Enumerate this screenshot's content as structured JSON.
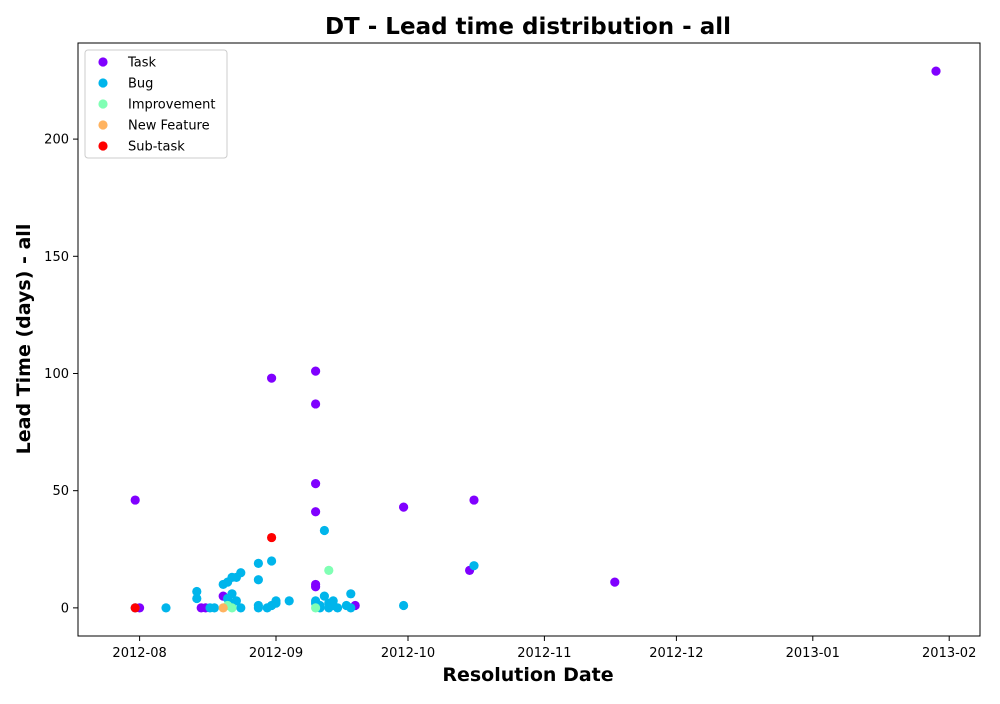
{
  "chart_data": {
    "type": "scatter",
    "title": "DT - Lead time distribution - all",
    "xlabel": "Resolution Date",
    "ylabel": "Lead Time (days) - all",
    "x_type": "date",
    "xlim": [
      "2012-07-18",
      "2013-02-08"
    ],
    "ylim": [
      -12,
      241
    ],
    "x_ticks": [
      "2012-08-01",
      "2012-09-01",
      "2012-10-01",
      "2012-11-01",
      "2012-12-01",
      "2013-01-01",
      "2013-02-01"
    ],
    "x_tick_labels": [
      "2012-08",
      "2012-09",
      "2012-10",
      "2012-11",
      "2012-12",
      "2013-01",
      "2013-02"
    ],
    "y_ticks": [
      0,
      50,
      100,
      150,
      200
    ],
    "y_tick_labels": [
      "0",
      "50",
      "100",
      "150",
      "200"
    ],
    "grid": false,
    "legend_position": "upper-left",
    "series": [
      {
        "name": "Task",
        "color": "#8000ff",
        "points": [
          {
            "x": "2012-07-31",
            "y": 46
          },
          {
            "x": "2012-08-01",
            "y": 0
          },
          {
            "x": "2012-08-15",
            "y": 0
          },
          {
            "x": "2012-08-16",
            "y": 0
          },
          {
            "x": "2012-08-20",
            "y": 5
          },
          {
            "x": "2012-08-31",
            "y": 98
          },
          {
            "x": "2012-09-10",
            "y": 101
          },
          {
            "x": "2012-09-10",
            "y": 87
          },
          {
            "x": "2012-09-10",
            "y": 53
          },
          {
            "x": "2012-09-10",
            "y": 41
          },
          {
            "x": "2012-09-10",
            "y": 10
          },
          {
            "x": "2012-09-10",
            "y": 9
          },
          {
            "x": "2012-09-19",
            "y": 1
          },
          {
            "x": "2012-09-30",
            "y": 43
          },
          {
            "x": "2012-10-15",
            "y": 16
          },
          {
            "x": "2012-10-16",
            "y": 46
          },
          {
            "x": "2012-11-17",
            "y": 11
          },
          {
            "x": "2013-01-29",
            "y": 229
          }
        ]
      },
      {
        "name": "Bug",
        "color": "#00b5eb",
        "points": [
          {
            "x": "2012-07-31",
            "y": 0
          },
          {
            "x": "2012-08-07",
            "y": 0
          },
          {
            "x": "2012-08-14",
            "y": 7
          },
          {
            "x": "2012-08-14",
            "y": 4
          },
          {
            "x": "2012-08-17",
            "y": 0
          },
          {
            "x": "2012-08-18",
            "y": 0
          },
          {
            "x": "2012-08-20",
            "y": 10
          },
          {
            "x": "2012-08-21",
            "y": 11
          },
          {
            "x": "2012-08-22",
            "y": 6
          },
          {
            "x": "2012-08-21",
            "y": 4
          },
          {
            "x": "2012-08-22",
            "y": 2
          },
          {
            "x": "2012-08-23",
            "y": 3
          },
          {
            "x": "2012-08-22",
            "y": 13
          },
          {
            "x": "2012-08-23",
            "y": 13
          },
          {
            "x": "2012-08-24",
            "y": 15
          },
          {
            "x": "2012-08-24",
            "y": 0
          },
          {
            "x": "2012-08-28",
            "y": 19
          },
          {
            "x": "2012-08-28",
            "y": 12
          },
          {
            "x": "2012-08-28",
            "y": 1
          },
          {
            "x": "2012-08-28",
            "y": 0
          },
          {
            "x": "2012-08-30",
            "y": 0
          },
          {
            "x": "2012-08-31",
            "y": 20
          },
          {
            "x": "2012-08-31",
            "y": 1
          },
          {
            "x": "2012-09-01",
            "y": 2
          },
          {
            "x": "2012-09-01",
            "y": 3
          },
          {
            "x": "2012-09-04",
            "y": 3
          },
          {
            "x": "2012-09-10",
            "y": 3
          },
          {
            "x": "2012-09-10",
            "y": 2
          },
          {
            "x": "2012-09-11",
            "y": 1
          },
          {
            "x": "2012-09-11",
            "y": 0
          },
          {
            "x": "2012-09-12",
            "y": 33
          },
          {
            "x": "2012-09-12",
            "y": 5
          },
          {
            "x": "2012-09-13",
            "y": 2
          },
          {
            "x": "2012-09-13",
            "y": 0
          },
          {
            "x": "2012-09-14",
            "y": 3
          },
          {
            "x": "2012-09-14",
            "y": 1
          },
          {
            "x": "2012-09-15",
            "y": 0
          },
          {
            "x": "2012-09-17",
            "y": 1
          },
          {
            "x": "2012-09-18",
            "y": 6
          },
          {
            "x": "2012-09-18",
            "y": 0
          },
          {
            "x": "2012-09-30",
            "y": 1
          },
          {
            "x": "2012-10-16",
            "y": 18
          }
        ]
      },
      {
        "name": "Improvement",
        "color": "#80ffb4",
        "points": [
          {
            "x": "2012-08-21",
            "y": 1
          },
          {
            "x": "2012-08-22",
            "y": 0
          },
          {
            "x": "2012-09-10",
            "y": 0
          },
          {
            "x": "2012-09-13",
            "y": 16
          }
        ]
      },
      {
        "name": "New Feature",
        "color": "#ffb360",
        "points": [
          {
            "x": "2012-08-20",
            "y": 0
          }
        ]
      },
      {
        "name": "Sub-task",
        "color": "#ff0000",
        "points": [
          {
            "x": "2012-07-31",
            "y": 0
          },
          {
            "x": "2012-08-31",
            "y": 30
          }
        ]
      }
    ]
  }
}
